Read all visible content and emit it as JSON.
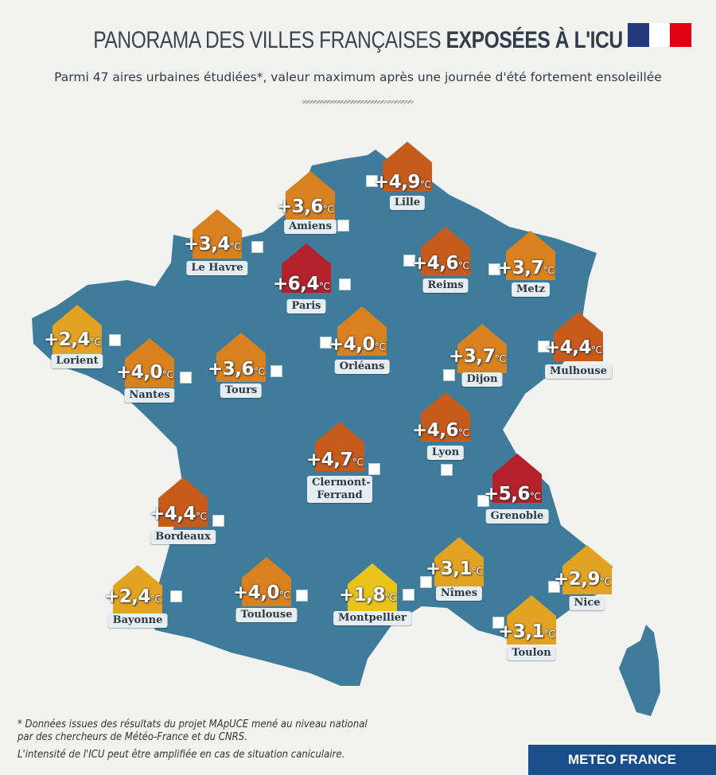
{
  "header": {
    "title_light": "PANORAMA DES VILLES FRANÇAISES",
    "title_bold": "EXPOSÉES À L'ICU",
    "subtitle": "Parmi 47 aires urbaines étudiées*, valeur maximum après une journée d'été fortement ensoleillée"
  },
  "unit": "°C",
  "colors": {
    "map": "#3f7c9c",
    "very_high": "#b5212b",
    "high": "#c65b1c",
    "medium": "#d9811f",
    "low": "#e3a322",
    "very_low": "#e8c41b",
    "brand": "#194e8a"
  },
  "cities": [
    {
      "name": "Lille",
      "value": "+4,9",
      "color": "#c65b1c"
    },
    {
      "name": "Amiens",
      "value": "+3,6",
      "color": "#d9811f"
    },
    {
      "name": "Le Havre",
      "value": "+3,4",
      "color": "#d9811f"
    },
    {
      "name": "Paris",
      "value": "+6,4",
      "color": "#b5212b"
    },
    {
      "name": "Reims",
      "value": "+4,6",
      "color": "#c65b1c"
    },
    {
      "name": "Metz",
      "value": "+3,7",
      "color": "#d9811f"
    },
    {
      "name": "Lorient",
      "value": "+2,4",
      "color": "#e3a322"
    },
    {
      "name": "Nantes",
      "value": "+4,0",
      "color": "#d9811f"
    },
    {
      "name": "Tours",
      "value": "+3,6",
      "color": "#d9811f"
    },
    {
      "name": "Orléans",
      "value": "+4,0",
      "color": "#d9811f"
    },
    {
      "name": "Dijon",
      "value": "+3,7",
      "color": "#d9811f"
    },
    {
      "name": "Mulhouse",
      "value": "+4,4",
      "color": "#c65b1c"
    },
    {
      "name": "Lyon",
      "value": "+4,6",
      "color": "#c65b1c"
    },
    {
      "name": "Clermont-Ferrand",
      "value": "+4,7",
      "color": "#c65b1c"
    },
    {
      "name": "Grenoble",
      "value": "+5,6",
      "color": "#b5212b"
    },
    {
      "name": "Bordeaux",
      "value": "+4,4",
      "color": "#c65b1c"
    },
    {
      "name": "Bayonne",
      "value": "+2,4",
      "color": "#e3a322"
    },
    {
      "name": "Toulouse",
      "value": "+4,0",
      "color": "#d9811f"
    },
    {
      "name": "Montpellier",
      "value": "+1,8",
      "color": "#e8c41b"
    },
    {
      "name": "Nîmes",
      "value": "+3,1",
      "color": "#e3a322"
    },
    {
      "name": "Nice",
      "value": "+2,9",
      "color": "#e3a322"
    },
    {
      "name": "Toulon",
      "value": "+3,1",
      "color": "#e3a322"
    }
  ],
  "footer": {
    "note1": "* Données issues des résultats du projet MApUCE mené au niveau national",
    "note2": "par des chercheurs de Météo-France et du CNRS.",
    "note3": "L'intensité de l'ICU peut être amplifiée en cas de situation caniculaire.",
    "brand": "METEO FRANCE"
  }
}
